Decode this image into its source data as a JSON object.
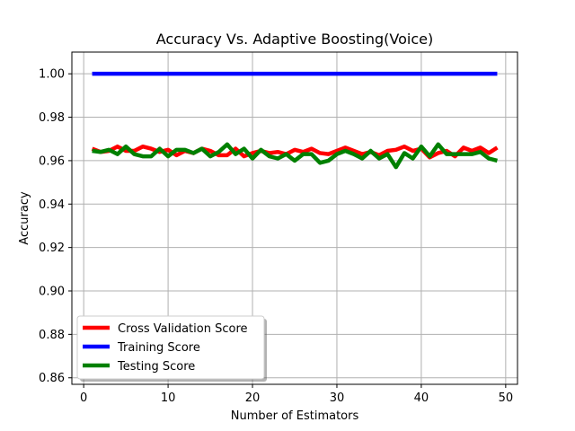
{
  "chart_data": {
    "type": "line",
    "title": "Accuracy Vs. Adaptive Boosting(Voice)",
    "xlabel": "Number of Estimators",
    "ylabel": "Accuracy",
    "xlim": [
      -1.4,
      51.4
    ],
    "ylim": [
      0.857,
      1.01
    ],
    "xticks": [
      0,
      10,
      20,
      30,
      40,
      50
    ],
    "yticks": [
      0.86,
      0.88,
      0.9,
      0.92,
      0.94,
      0.96,
      0.98,
      1.0
    ],
    "ytick_labels": [
      "0.86",
      "0.88",
      "0.90",
      "0.92",
      "0.94",
      "0.96",
      "0.98",
      "1.00"
    ],
    "grid": true,
    "legend": "lower-left",
    "x": [
      1,
      2,
      3,
      4,
      5,
      6,
      7,
      8,
      9,
      10,
      11,
      12,
      13,
      14,
      15,
      16,
      17,
      18,
      19,
      20,
      21,
      22,
      23,
      24,
      25,
      26,
      27,
      28,
      29,
      30,
      31,
      32,
      33,
      34,
      35,
      36,
      37,
      38,
      39,
      40,
      41,
      42,
      43,
      44,
      45,
      46,
      47,
      48,
      49
    ],
    "series": [
      {
        "name": "Cross Validation Score",
        "color": "#ff0000",
        "values": [
          0.9655,
          0.964,
          0.9645,
          0.9665,
          0.9645,
          0.9645,
          0.9665,
          0.9655,
          0.964,
          0.965,
          0.9625,
          0.9645,
          0.9635,
          0.9655,
          0.9645,
          0.9625,
          0.9625,
          0.9655,
          0.962,
          0.9635,
          0.9645,
          0.9635,
          0.964,
          0.963,
          0.965,
          0.964,
          0.9655,
          0.9635,
          0.963,
          0.9645,
          0.966,
          0.9645,
          0.963,
          0.964,
          0.9625,
          0.9645,
          0.965,
          0.9665,
          0.9645,
          0.9655,
          0.9615,
          0.9635,
          0.9645,
          0.962,
          0.966,
          0.9645,
          0.966,
          0.9635,
          0.966
        ]
      },
      {
        "name": "Training Score",
        "color": "#0000ff",
        "values": [
          1.0,
          1.0,
          1.0,
          1.0,
          1.0,
          1.0,
          1.0,
          1.0,
          1.0,
          1.0,
          1.0,
          1.0,
          1.0,
          1.0,
          1.0,
          1.0,
          1.0,
          1.0,
          1.0,
          1.0,
          1.0,
          1.0,
          1.0,
          1.0,
          1.0,
          1.0,
          1.0,
          1.0,
          1.0,
          1.0,
          1.0,
          1.0,
          1.0,
          1.0,
          1.0,
          1.0,
          1.0,
          1.0,
          1.0,
          1.0,
          1.0,
          1.0,
          1.0,
          1.0,
          1.0,
          1.0,
          1.0,
          1.0,
          1.0
        ]
      },
      {
        "name": "Testing Score",
        "color": "#008000",
        "values": [
          0.9645,
          0.964,
          0.965,
          0.963,
          0.9665,
          0.963,
          0.962,
          0.962,
          0.9655,
          0.962,
          0.965,
          0.965,
          0.9635,
          0.9655,
          0.962,
          0.964,
          0.9675,
          0.963,
          0.9655,
          0.961,
          0.965,
          0.962,
          0.961,
          0.963,
          0.96,
          0.963,
          0.963,
          0.959,
          0.96,
          0.963,
          0.9645,
          0.963,
          0.961,
          0.9645,
          0.961,
          0.963,
          0.957,
          0.9635,
          0.961,
          0.9665,
          0.962,
          0.9675,
          0.963,
          0.963,
          0.963,
          0.963,
          0.964,
          0.961,
          0.96
        ]
      }
    ]
  }
}
